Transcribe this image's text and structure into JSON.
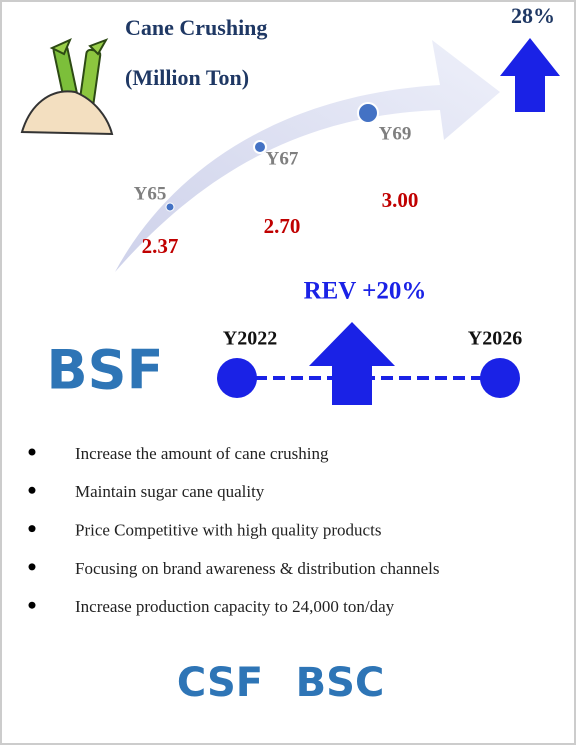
{
  "header": {
    "title": "Cane Crushing",
    "unit": "(Million Ton)",
    "growth": "28%"
  },
  "points": [
    {
      "label": "Y65",
      "value": "2.37"
    },
    {
      "label": "Y67",
      "value": "2.70"
    },
    {
      "label": "Y69",
      "value": "3.00"
    }
  ],
  "timeline": {
    "company": "BSF",
    "revenue": "REV +20%",
    "start": "Y2022",
    "end": "Y2026"
  },
  "bullets": [
    "Increase the amount of cane crushing",
    "Maintain sugar cane quality",
    "Price Competitive with high quality products",
    "Focusing on brand awareness & distribution channels",
    "Increase production capacity to 24,000 ton/day"
  ],
  "footer": {
    "companies": [
      "CSF",
      "BSC"
    ]
  }
}
